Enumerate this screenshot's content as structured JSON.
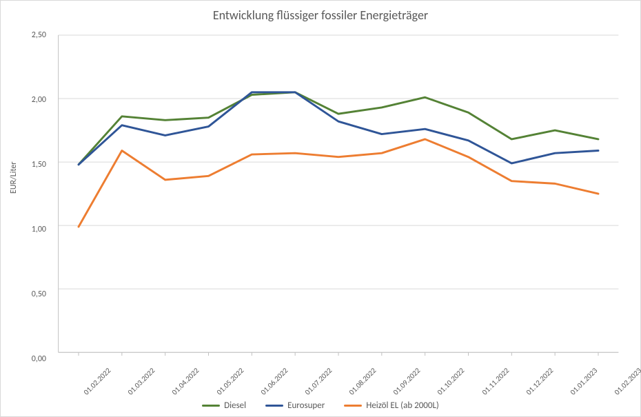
{
  "chart": {
    "type": "line",
    "title": "Entwicklung flüssiger fossiler Energieträger",
    "title_fontsize": 18,
    "title_color": "#595959",
    "ylabel": "EUR/Liter",
    "label_fontsize": 12,
    "label_color": "#595959",
    "background_color": "#ffffff",
    "plot_background": "#ffffff",
    "border_color": "#d9d9d9",
    "grid_color": "#d9d9d9",
    "grid_width": 1,
    "axis_line_color": "#bfbfbf",
    "tick_color": "#595959",
    "tick_fontsize": 12,
    "x_tick_fontsize": 11,
    "x_tick_rotation": -45,
    "ylim": [
      0.0,
      2.5
    ],
    "ytick_step": 0.5,
    "yticks": [
      "0,00",
      "0,50",
      "1,00",
      "1,50",
      "2,00",
      "2,50"
    ],
    "categories": [
      "01.02.2022",
      "01.03.2022",
      "01.04.2022",
      "01.05.2022",
      "01.06.2022",
      "01.07.2022",
      "01.08.2022",
      "01.09.2022",
      "01.10.2022",
      "01.11.2022",
      "01.12.2022",
      "01.01.2023",
      "01.02.2023"
    ],
    "line_width": 3,
    "series": [
      {
        "name": "Diesel",
        "color": "#548235",
        "values": [
          1.48,
          1.86,
          1.83,
          1.85,
          2.03,
          2.05,
          1.88,
          1.93,
          2.01,
          1.89,
          1.68,
          1.75,
          1.68
        ]
      },
      {
        "name": "Eurosuper",
        "color": "#2f5597",
        "values": [
          1.48,
          1.79,
          1.71,
          1.78,
          2.05,
          2.05,
          1.82,
          1.72,
          1.76,
          1.67,
          1.49,
          1.57,
          1.59
        ]
      },
      {
        "name": "Heizöl EL (ab 2000L)",
        "color": "#ed7d31",
        "values": [
          0.99,
          1.59,
          1.36,
          1.39,
          1.56,
          1.57,
          1.54,
          1.57,
          1.68,
          1.54,
          1.35,
          1.33,
          1.25
        ]
      }
    ],
    "legend": {
      "position": "bottom",
      "fontsize": 13,
      "item_gap": 28,
      "line_length": 26
    }
  }
}
